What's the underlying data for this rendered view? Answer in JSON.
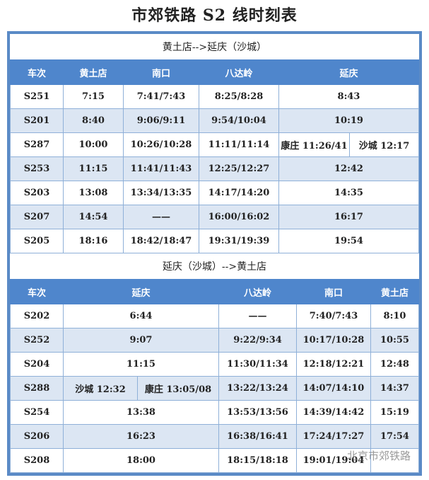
{
  "title": "市郊铁路 S2 线时刻表",
  "down": {
    "direction": "黄土店-->延庆（沙城）",
    "headers": [
      "车次",
      "黄土店",
      "南口",
      "八达岭",
      "延庆"
    ],
    "rows": [
      [
        "S251",
        "7:15",
        "7:41/7:43",
        "8:25/8:28",
        "8:43"
      ],
      [
        "S201",
        "8:40",
        "9:06/9:11",
        "9:54/10:04",
        "10:19"
      ],
      [
        "S287",
        "10:00",
        "10:26/10:28",
        "11:11/11:14",
        "康庄 11:26/41",
        "沙城 12:17"
      ],
      [
        "S253",
        "11:15",
        "11:41/11:43",
        "12:25/12:27",
        "12:42"
      ],
      [
        "S203",
        "13:08",
        "13:34/13:35",
        "14:17/14:20",
        "14:35"
      ],
      [
        "S207",
        "14:54",
        "——",
        "16:00/16:02",
        "16:17"
      ],
      [
        "S205",
        "18:16",
        "18:42/18:47",
        "19:31/19:39",
        "19:54"
      ]
    ]
  },
  "up": {
    "direction": "延庆（沙城）-->黄土店",
    "headers": [
      "车次",
      "延庆",
      "八达岭",
      "南口",
      "黄土店"
    ],
    "rows": [
      [
        "S202",
        "6:44",
        "——",
        "7:40/7:43",
        "8:10"
      ],
      [
        "S252",
        "9:07",
        "9:22/9:34",
        "10:17/10:28",
        "10:55"
      ],
      [
        "S204",
        "11:15",
        "11:30/11:34",
        "12:18/12:21",
        "12:48"
      ],
      [
        "S288",
        "沙城 12:32",
        "康庄 13:05/08",
        "13:22/13:24",
        "14:07/14:10",
        "14:37"
      ],
      [
        "S254",
        "13:38",
        "13:53/13:56",
        "14:39/14:42",
        "15:19"
      ],
      [
        "S206",
        "16:23",
        "16:38/16:41",
        "17:24/17:27",
        "17:54"
      ],
      [
        "S208",
        "18:00",
        "18:15/18:18",
        "19:01/19:04",
        ""
      ]
    ]
  },
  "watermark": "北京市郊铁路",
  "colors": {
    "header": "#4f86cc",
    "alt_row": "#dce6f3",
    "border": "#5a8ac6"
  }
}
